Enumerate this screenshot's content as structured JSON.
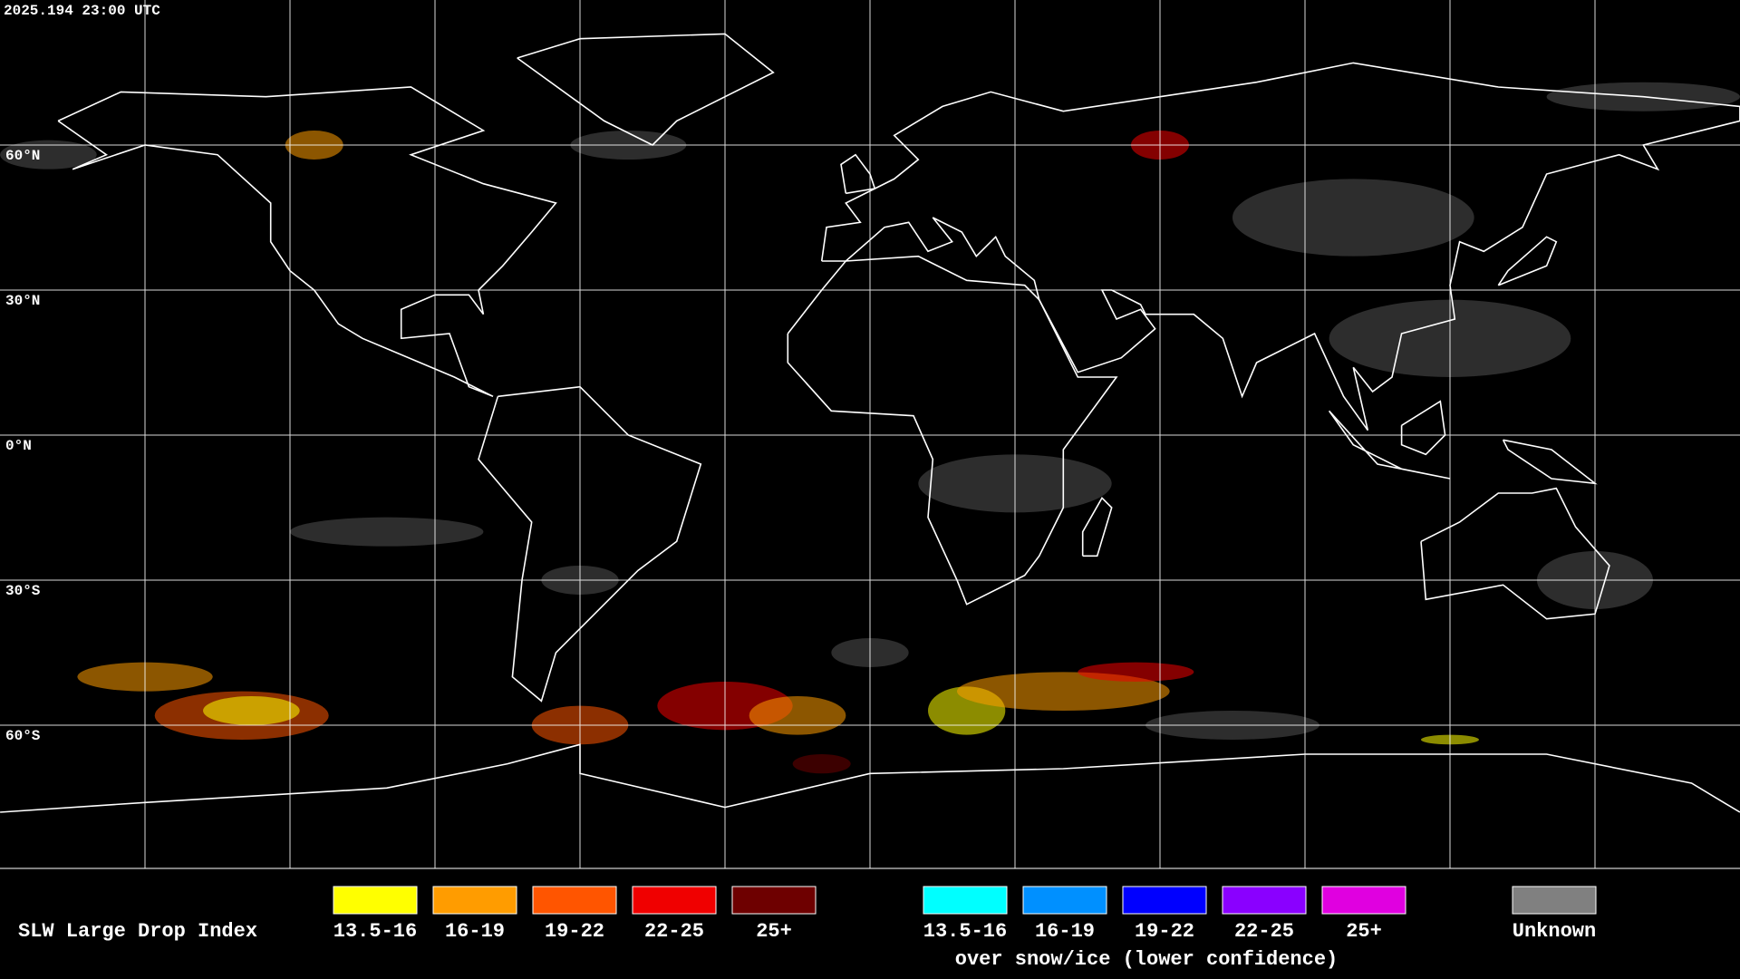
{
  "header": {
    "timestamp": "2025.194 23:00 UTC"
  },
  "map": {
    "latitude_labels": [
      "60°N",
      "30°N",
      "0°N",
      "30°S",
      "60°S"
    ]
  },
  "legend": {
    "title": "SLW Large Drop Index",
    "items": [
      {
        "label": "13.5-16",
        "color": "#ffff00"
      },
      {
        "label": "16-19",
        "color": "#ff9c00"
      },
      {
        "label": "19-22",
        "color": "#ff5500"
      },
      {
        "label": "22-25",
        "color": "#f00000"
      },
      {
        "label": "25+",
        "color": "#6e0000"
      }
    ],
    "snow_items": [
      {
        "label": "13.5-16",
        "color": "#00ffff"
      },
      {
        "label": "16-19",
        "color": "#0090ff"
      },
      {
        "label": "19-22",
        "color": "#0000ff"
      },
      {
        "label": "22-25",
        "color": "#8a00ff"
      },
      {
        "label": "25+",
        "color": "#e000e0"
      }
    ],
    "snow_caption": "over snow/ice (lower confidence)",
    "unknown": {
      "label": "Unknown",
      "color": "#808080"
    }
  }
}
